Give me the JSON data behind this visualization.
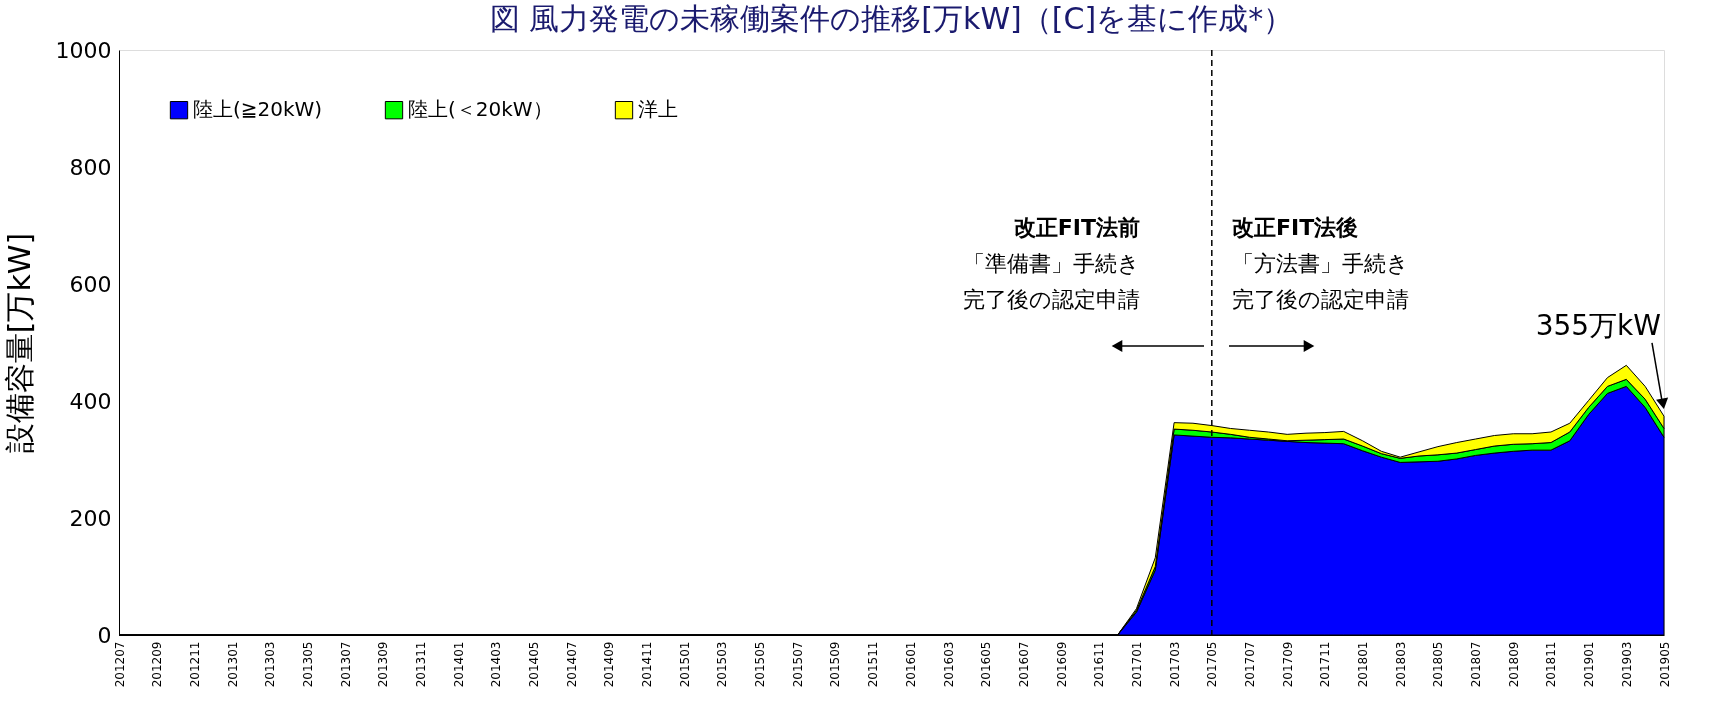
{
  "chart_data": {
    "type": "area",
    "stacked": true,
    "title": "図 風力発電の未稼働案件の推移[万kW]（[C]を基に作成*）",
    "ylabel": "設備容量[万kW]",
    "categories": [
      "201207",
      null,
      "201209",
      null,
      "201211",
      null,
      "201301",
      null,
      "201303",
      null,
      "201305",
      null,
      "201307",
      null,
      "201309",
      null,
      "201311",
      null,
      "201401",
      null,
      "201403",
      null,
      "201405",
      null,
      "201407",
      null,
      "201409",
      null,
      "201411",
      null,
      "201501",
      null,
      "201503",
      null,
      "201505",
      null,
      "201507",
      null,
      "201509",
      null,
      "201511",
      null,
      "201601",
      null,
      "201603",
      null,
      "201605",
      null,
      "201607",
      null,
      "201609",
      null,
      "201611",
      null,
      "201701",
      null,
      "201703",
      null,
      "201705",
      null,
      "201707",
      null,
      "201709",
      null,
      "201711",
      null,
      "201801",
      null,
      "201803",
      null,
      "201805",
      null,
      "201807",
      null,
      "201809",
      null,
      "201811",
      null,
      "201901",
      null,
      "201903",
      null,
      "201905"
    ],
    "series": [
      {
        "name": "陸上(≧20kW)",
        "color": "#0000ff",
        "values": [
          0,
          0,
          0,
          0,
          0,
          0,
          0,
          0,
          0,
          0,
          0,
          0,
          0,
          0,
          0,
          0,
          0,
          0,
          0,
          0,
          0,
          0,
          0,
          0,
          0,
          0,
          0,
          0,
          0,
          0,
          0,
          0,
          0,
          0,
          0,
          0,
          0,
          0,
          0,
          0,
          0,
          0,
          0,
          0,
          0,
          0,
          0,
          0,
          0,
          0,
          0,
          0,
          0,
          0,
          39,
          111,
          342,
          340,
          338,
          337,
          335,
          333,
          331,
          329,
          328,
          327,
          315,
          304,
          295,
          296,
          297,
          301,
          307,
          311,
          314,
          316,
          316,
          332,
          377,
          413,
          425,
          389,
          338
        ]
      },
      {
        "name": "陸上(＜20kW）",
        "color": "#00ff00",
        "values": [
          0,
          0,
          0,
          0,
          0,
          0,
          0,
          0,
          0,
          0,
          0,
          0,
          0,
          0,
          0,
          0,
          0,
          0,
          0,
          0,
          0,
          0,
          0,
          0,
          0,
          0,
          0,
          0,
          0,
          0,
          0,
          0,
          0,
          0,
          0,
          0,
          0,
          0,
          0,
          0,
          0,
          0,
          0,
          0,
          0,
          0,
          0,
          0,
          0,
          0,
          0,
          0,
          0,
          0,
          3,
          6,
          10,
          10,
          9,
          6,
          3,
          2,
          1,
          4,
          6,
          8,
          8,
          6,
          7,
          10,
          11,
          10,
          10,
          12,
          12,
          11,
          13,
          15,
          12,
          12,
          12,
          14,
          15
        ]
      },
      {
        "name": "洋上",
        "color": "#ffff00",
        "values": [
          0,
          0,
          0,
          0,
          0,
          0,
          0,
          0,
          0,
          0,
          0,
          0,
          0,
          0,
          0,
          0,
          0,
          0,
          0,
          0,
          0,
          0,
          0,
          0,
          0,
          0,
          0,
          0,
          0,
          0,
          0,
          0,
          0,
          0,
          0,
          0,
          0,
          0,
          0,
          0,
          0,
          0,
          0,
          0,
          0,
          0,
          0,
          0,
          0,
          0,
          0,
          0,
          0,
          0,
          3,
          15,
          11,
          12,
          11,
          10,
          12,
          12,
          11,
          12,
          12,
          13,
          9,
          4,
          2,
          7,
          14,
          18,
          18,
          18,
          18,
          17,
          18,
          15,
          12,
          15,
          24,
          22,
          21
        ]
      }
    ],
    "ylim": [
      0,
      1000
    ],
    "yticks": [
      0,
      200,
      400,
      600,
      800,
      1000
    ],
    "ref_lines": [
      {
        "axis": "x",
        "value": "201705",
        "line_style": "dashed",
        "color": "#000000"
      }
    ],
    "annotations": [
      "改正FIT法前",
      "「準備書」手続き",
      "完了後の認定申請",
      "改正FIT法後",
      "「方法書」手続き",
      "完了後の認定申請",
      {
        "text": "355万kW",
        "x": "201905",
        "y": 390
      }
    ],
    "legend": "top left",
    "grid": false
  }
}
